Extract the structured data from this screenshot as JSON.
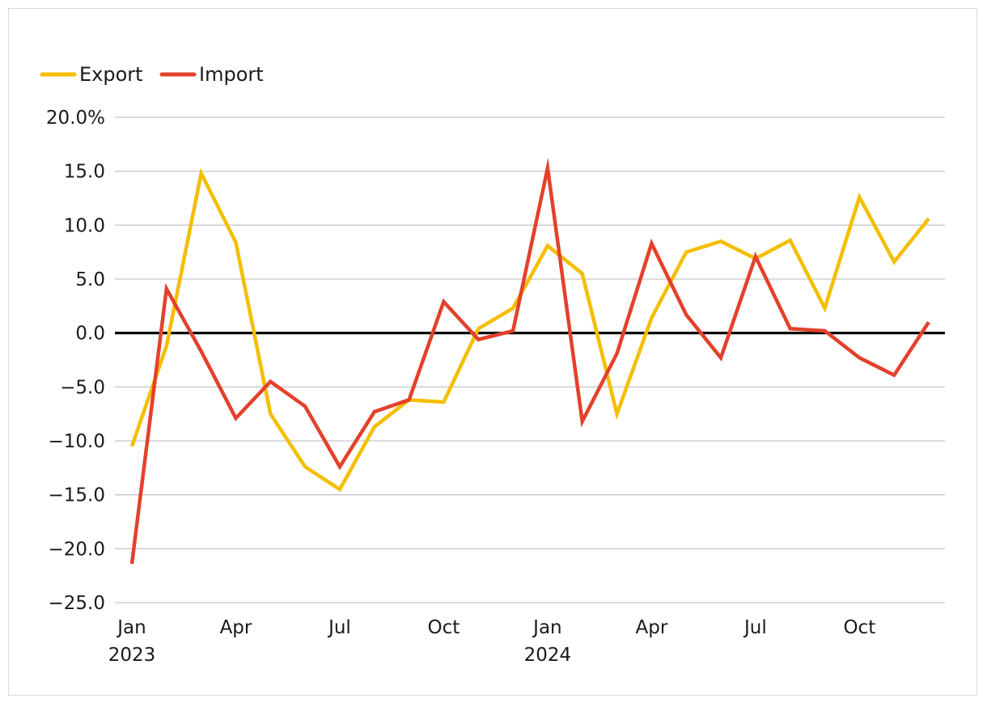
{
  "chart_data": {
    "type": "line",
    "title": "",
    "xlabel": "",
    "ylabel": "",
    "ylim": [
      -25,
      20
    ],
    "yticks": [
      20,
      15,
      10,
      5,
      0,
      -5,
      -10,
      -15,
      -20,
      -25
    ],
    "ytick_labels": [
      "20.0%",
      "15.0",
      "10.0",
      "5.0",
      "0.0",
      "−5.0",
      "−10.0",
      "−15.0",
      "−20.0",
      "−25.0"
    ],
    "x": [
      "2023-01",
      "2023-02",
      "2023-03",
      "2023-04",
      "2023-05",
      "2023-06",
      "2023-07",
      "2023-08",
      "2023-09",
      "2023-10",
      "2023-11",
      "2023-12",
      "2024-01",
      "2024-02",
      "2024-03",
      "2024-04",
      "2024-05",
      "2024-06",
      "2024-07",
      "2024-08",
      "2024-09",
      "2024-10",
      "2024-11",
      "2024-12"
    ],
    "xtick_labels": [
      {
        "x": "2023-01",
        "month": "Jan",
        "year": "2023"
      },
      {
        "x": "2023-04",
        "month": "Apr",
        "year": ""
      },
      {
        "x": "2023-07",
        "month": "Jul",
        "year": ""
      },
      {
        "x": "2023-10",
        "month": "Oct",
        "year": ""
      },
      {
        "x": "2024-01",
        "month": "Jan",
        "year": "2024"
      },
      {
        "x": "2024-04",
        "month": "Apr",
        "year": ""
      },
      {
        "x": "2024-07",
        "month": "Jul",
        "year": ""
      },
      {
        "x": "2024-10",
        "month": "Oct",
        "year": ""
      }
    ],
    "series": [
      {
        "name": "Export",
        "color": "#F5BE00",
        "values": [
          -10.5,
          -1.2,
          14.8,
          8.4,
          -7.5,
          -12.4,
          -14.5,
          -8.7,
          -6.2,
          -6.4,
          0.4,
          2.3,
          8.1,
          5.5,
          -7.5,
          1.4,
          7.5,
          8.5,
          6.9,
          8.6,
          2.3,
          12.6,
          6.6,
          10.6
        ]
      },
      {
        "name": "Import",
        "color": "#E3412B",
        "values": [
          -21.4,
          4.1,
          -1.7,
          -7.9,
          -4.5,
          -6.8,
          -12.4,
          -7.3,
          -6.2,
          2.9,
          -0.6,
          0.2,
          15.3,
          -8.2,
          -1.9,
          8.3,
          1.7,
          -2.3,
          7.1,
          0.4,
          0.2,
          -2.3,
          -3.9,
          1.0
        ]
      }
    ],
    "legend": "top-left",
    "grid": "horizontal",
    "zero_line": true
  }
}
